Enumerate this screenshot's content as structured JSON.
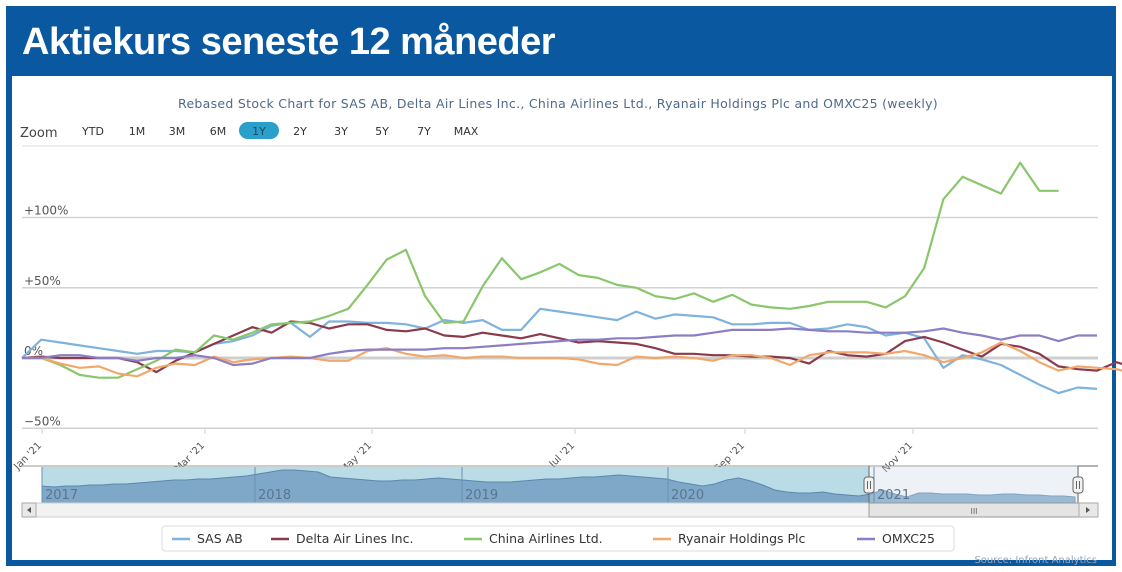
{
  "header": {
    "title": "Aktiekurs seneste 12 måneder"
  },
  "zoom": {
    "label": "Zoom",
    "buttons": [
      "YTD",
      "1M",
      "3M",
      "6M",
      "1Y",
      "2Y",
      "3Y",
      "5Y",
      "7Y",
      "MAX"
    ],
    "selected": "1Y"
  },
  "navigator": {
    "year_labels": [
      "2017",
      "2018",
      "2019",
      "2020",
      "2021"
    ],
    "scrollbar_grip": "III"
  },
  "source": "Source: Infront Analytics",
  "chart_data": {
    "type": "line",
    "title": "Rebased Stock Chart for SAS AB, Delta Air Lines Inc., China Airlines Ltd., Ryanair Holdings Plc and OMXC25 (weekly)",
    "xlabel": "",
    "ylabel": "",
    "y_unit": "% change (rebased)",
    "ylim": [
      -50,
      150
    ],
    "y_ticks": [
      {
        "value": -50,
        "label": "−50%"
      },
      {
        "value": 0,
        "label": "0%"
      },
      {
        "value": 50,
        "label": "+50%"
      },
      {
        "value": 100,
        "label": "+100%"
      }
    ],
    "x_ticks": [
      {
        "week": 1,
        "label": "Jan '21"
      },
      {
        "week": 9.5,
        "label": "Mar '21"
      },
      {
        "week": 18,
        "label": "May '21"
      },
      {
        "week": 28.5,
        "label": "Jul '21"
      },
      {
        "week": 37,
        "label": "Sep '21"
      },
      {
        "week": 45.5,
        "label": "Nov '21"
      }
    ],
    "x_weeks": 56,
    "grid": true,
    "legend": "bottom",
    "series": [
      {
        "name": "SAS AB",
        "color": "#7fb2dd",
        "values": [
          0,
          13,
          11,
          9,
          7,
          5,
          3,
          5,
          5,
          4,
          10,
          12,
          16,
          23,
          25,
          15,
          26,
          26,
          25,
          25,
          24,
          21,
          27,
          25,
          27,
          20,
          20,
          35,
          33,
          31,
          29,
          27,
          33,
          28,
          31,
          30,
          29,
          24,
          24,
          25,
          25,
          20,
          21,
          24,
          22,
          16,
          18,
          14,
          -7,
          2,
          -1,
          -5,
          -12,
          -19,
          -25,
          -21,
          -22
        ]
      },
      {
        "name": "Delta Air Lines Inc.",
        "color": "#8a3b4b",
        "values": [
          0,
          1,
          0,
          0,
          0,
          0,
          -3,
          -10,
          -2,
          4,
          10,
          16,
          22,
          18,
          26,
          25,
          21,
          24,
          24,
          20,
          19,
          21,
          16,
          15,
          18,
          16,
          14,
          17,
          14,
          11,
          12,
          11,
          10,
          7,
          3,
          3,
          2,
          2,
          1,
          1,
          0,
          -4,
          5,
          2,
          1,
          3,
          12,
          15,
          11,
          6,
          1,
          10,
          8,
          3,
          -6,
          -8,
          -9,
          -3,
          -7
        ]
      },
      {
        "name": "China Airlines Ltd.",
        "color": "#8ac66c",
        "values": [
          0,
          0,
          -5,
          -12,
          -14,
          -14,
          -8,
          -2,
          6,
          4,
          16,
          13,
          18,
          24,
          25,
          26,
          30,
          35,
          52,
          70,
          77,
          44,
          25,
          26,
          51,
          71,
          56,
          61,
          67,
          59,
          57,
          52,
          50,
          44,
          42,
          46,
          40,
          45,
          38,
          36,
          35,
          37,
          40,
          40,
          40,
          36,
          44,
          64,
          113,
          129,
          123,
          117,
          139,
          119,
          119
        ]
      },
      {
        "name": "Ryanair Holdings Plc",
        "color": "#f0a86c",
        "values": [
          0,
          0,
          -4,
          -7,
          -6,
          -11,
          -13,
          -7,
          -4,
          -5,
          1,
          -3,
          -1,
          0,
          1,
          0,
          -2,
          -2,
          5,
          7,
          3,
          1,
          2,
          0,
          1,
          1,
          0,
          0,
          0,
          -1,
          -4,
          -5,
          1,
          0,
          1,
          0,
          -2,
          2,
          2,
          0,
          -5,
          2,
          4,
          4,
          4,
          3,
          5,
          2,
          -3,
          0,
          4,
          11,
          5,
          -3,
          -9,
          -6,
          -7,
          -8,
          -11,
          -7
        ]
      },
      {
        "name": "OMXC25",
        "color": "#8c7dc4",
        "values": [
          0,
          0,
          2,
          2,
          0,
          0,
          -2,
          0,
          0,
          2,
          0,
          -5,
          -4,
          0,
          0,
          0,
          3,
          5,
          6,
          6,
          6,
          6,
          7,
          7,
          8,
          9,
          10,
          11,
          12,
          13,
          13,
          14,
          14,
          15,
          16,
          16,
          18,
          20,
          20,
          20,
          21,
          20,
          19,
          19,
          18,
          18,
          18,
          19,
          21,
          18,
          16,
          13,
          16,
          16,
          12,
          16,
          16
        ]
      }
    ]
  }
}
